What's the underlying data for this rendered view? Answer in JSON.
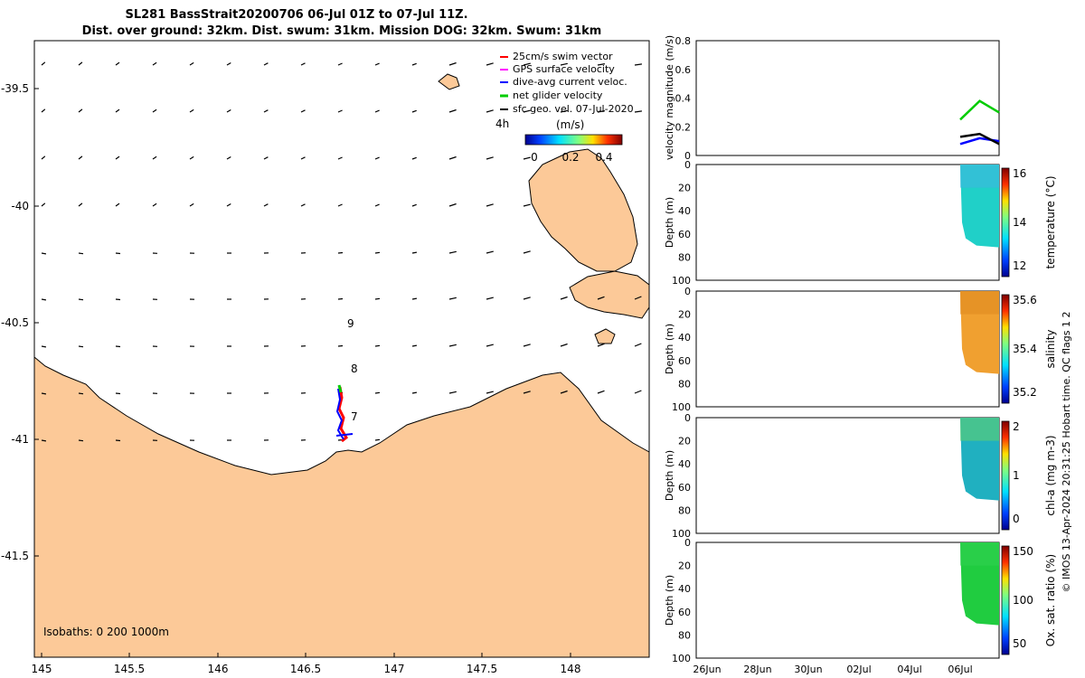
{
  "header": {
    "title_line1": "SL281 BassStrait20200706 06-Jul 01Z to 07-Jul 11Z.",
    "title_line2": "Dist. over ground: 32km. Dist. swum: 31km. Mission DOG: 32km. Swum: 31km"
  },
  "map": {
    "x_ticks": [
      "145",
      "145.5",
      "146",
      "146.5",
      "147",
      "147.5",
      "148"
    ],
    "y_ticks": [
      "-39.5",
      "-40",
      "-40.5",
      "-41",
      "-41.5"
    ],
    "legend": [
      {
        "label": "25cm/s swim vector",
        "color": "#ff0000"
      },
      {
        "label": "GPS surface velocity",
        "color": "#ff00ff"
      },
      {
        "label": "dive-avg current veloc.",
        "color": "#0000ff"
      },
      {
        "label": "net glider velocity",
        "color": "#00cc00"
      },
      {
        "label": "sfc geo. vel. 07-Jul-2020",
        "color": "#000000"
      }
    ],
    "scale_label": "4h",
    "colorbar_unit": "(m/s)",
    "colorbar_ticks": [
      "0",
      "0.2",
      "0.4"
    ],
    "day_labels": [
      "9",
      "8",
      "7"
    ],
    "isobaths_label": "Isobaths: 0   200  1000m",
    "land_color": "#fcc998"
  },
  "panels": {
    "x_ticks": [
      "26Jun",
      "28Jun",
      "30Jun",
      "02Jul",
      "04Jul",
      "06Jul"
    ],
    "velocity": {
      "ylabel": "velocity magnitude (m/s)",
      "y_ticks": [
        "0",
        "0.2",
        "0.4",
        "0.6",
        "0.8"
      ]
    },
    "depth_ylabel": "Depth (m)",
    "depth_ticks": [
      "0",
      "20",
      "40",
      "60",
      "80",
      "100"
    ],
    "temperature": {
      "label": "temperature (°C)",
      "cb_ticks": [
        "16",
        "14",
        "12"
      ]
    },
    "salinity": {
      "label": "salinity",
      "cb_ticks": [
        "35.6",
        "35.4",
        "35.2"
      ]
    },
    "chla": {
      "label": "chl-a (mg m-3)",
      "cb_ticks": [
        "2",
        "1",
        "0"
      ]
    },
    "oxygen": {
      "label": "Ox. sat. ratio (%)",
      "cb_ticks": [
        "150",
        "100",
        "50"
      ]
    }
  },
  "footer": {
    "credit": "© IMOS 13-Apr-2024 20:31:25 Hobart time. QC flags 1  2"
  },
  "chart_data": [
    {
      "type": "line",
      "series": [
        {
          "name": "net glider velocity",
          "x": [
            "06Jul",
            "06Jul",
            "07Jul"
          ],
          "values": [
            0.25,
            0.38,
            0.3
          ]
        },
        {
          "name": "dive-avg current veloc.",
          "x": [
            "06Jul",
            "06Jul",
            "07Jul"
          ],
          "values": [
            0.08,
            0.12,
            0.1
          ]
        },
        {
          "name": "sfc geo. vel. 07-Jul-2020",
          "x": [
            "06Jul",
            "06Jul",
            "07Jul"
          ],
          "values": [
            0.13,
            0.15,
            0.08
          ]
        }
      ],
      "ylabel": "velocity magnitude (m/s)",
      "ylim": [
        0,
        0.8
      ]
    },
    {
      "type": "heatmap",
      "ylabel": "Depth (m)",
      "ylim": [
        100,
        0
      ],
      "colorbar_label": "temperature (°C)",
      "clim": [
        11.5,
        16.2
      ]
    },
    {
      "type": "heatmap",
      "ylabel": "Depth (m)",
      "ylim": [
        100,
        0
      ],
      "colorbar_label": "salinity",
      "clim": [
        35.1,
        35.6
      ]
    },
    {
      "type": "heatmap",
      "ylabel": "Depth (m)",
      "ylim": [
        100,
        0
      ],
      "colorbar_label": "chl-a (mg m-3)",
      "clim": [
        0,
        2
      ]
    },
    {
      "type": "heatmap",
      "ylabel": "Depth (m)",
      "ylim": [
        100,
        0
      ],
      "colorbar_label": "Ox. sat. ratio (%)",
      "clim": [
        20,
        175
      ]
    }
  ]
}
